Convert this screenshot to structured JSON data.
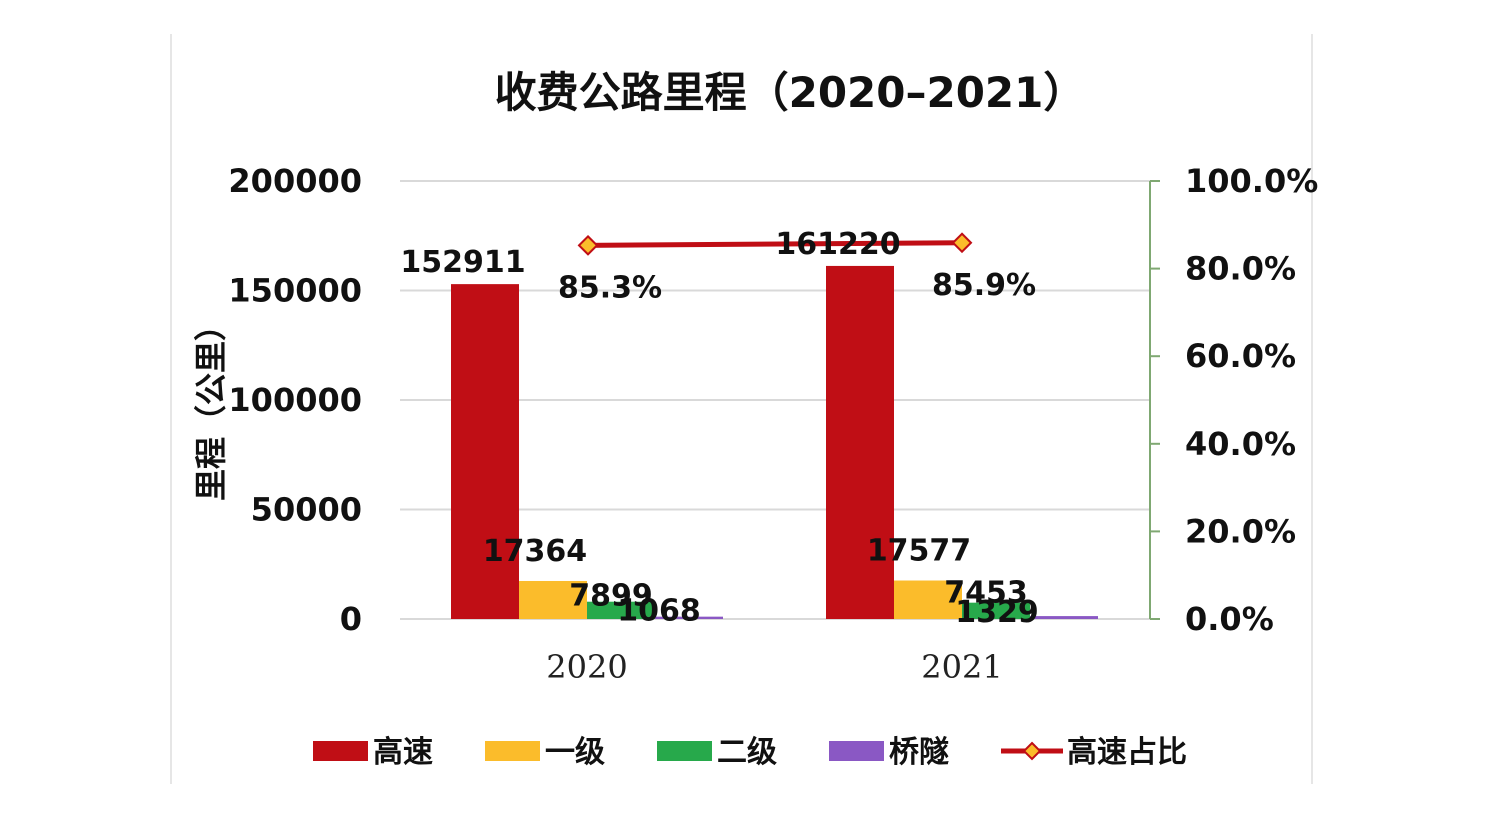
{
  "chart_data": {
    "type": "bar",
    "title": "收费公路里程（2020–2021）",
    "ylabel": "里程（公里）",
    "ylabel_right": "",
    "categories": [
      "2020",
      "2021"
    ],
    "ylim": [
      0,
      200000
    ],
    "yticks": [
      "0",
      "50000",
      "100000",
      "150000",
      "200000"
    ],
    "y2lim": [
      0,
      100
    ],
    "y2ticks": [
      "0.0%",
      "20.0%",
      "40.0%",
      "60.0%",
      "80.0%",
      "100.0%"
    ],
    "grid": true,
    "legend_position": "bottom",
    "series": [
      {
        "name": "高速",
        "type": "bar",
        "axis": "left",
        "color": "#c00e15",
        "values": [
          152911,
          161220
        ],
        "labels": [
          "152911",
          "161220"
        ]
      },
      {
        "name": "一级",
        "type": "bar",
        "axis": "left",
        "color": "#fbbc2b",
        "values": [
          17364,
          17577
        ],
        "labels": [
          "17364",
          "17577"
        ]
      },
      {
        "name": "二级",
        "type": "bar",
        "axis": "left",
        "color": "#27a94b",
        "values": [
          7899,
          7453
        ],
        "labels": [
          "7899",
          "7453"
        ]
      },
      {
        "name": "桥隧",
        "type": "bar",
        "axis": "left",
        "color": "#8a58c4",
        "values": [
          1068,
          1329
        ],
        "labels": [
          "1068",
          "1329"
        ]
      },
      {
        "name": "高速占比",
        "type": "line",
        "axis": "right",
        "color": "#c00e15",
        "marker_color": "#fbbc2b",
        "values": [
          85.3,
          85.9
        ],
        "labels": [
          "85.3%",
          "85.9%"
        ]
      }
    ]
  }
}
